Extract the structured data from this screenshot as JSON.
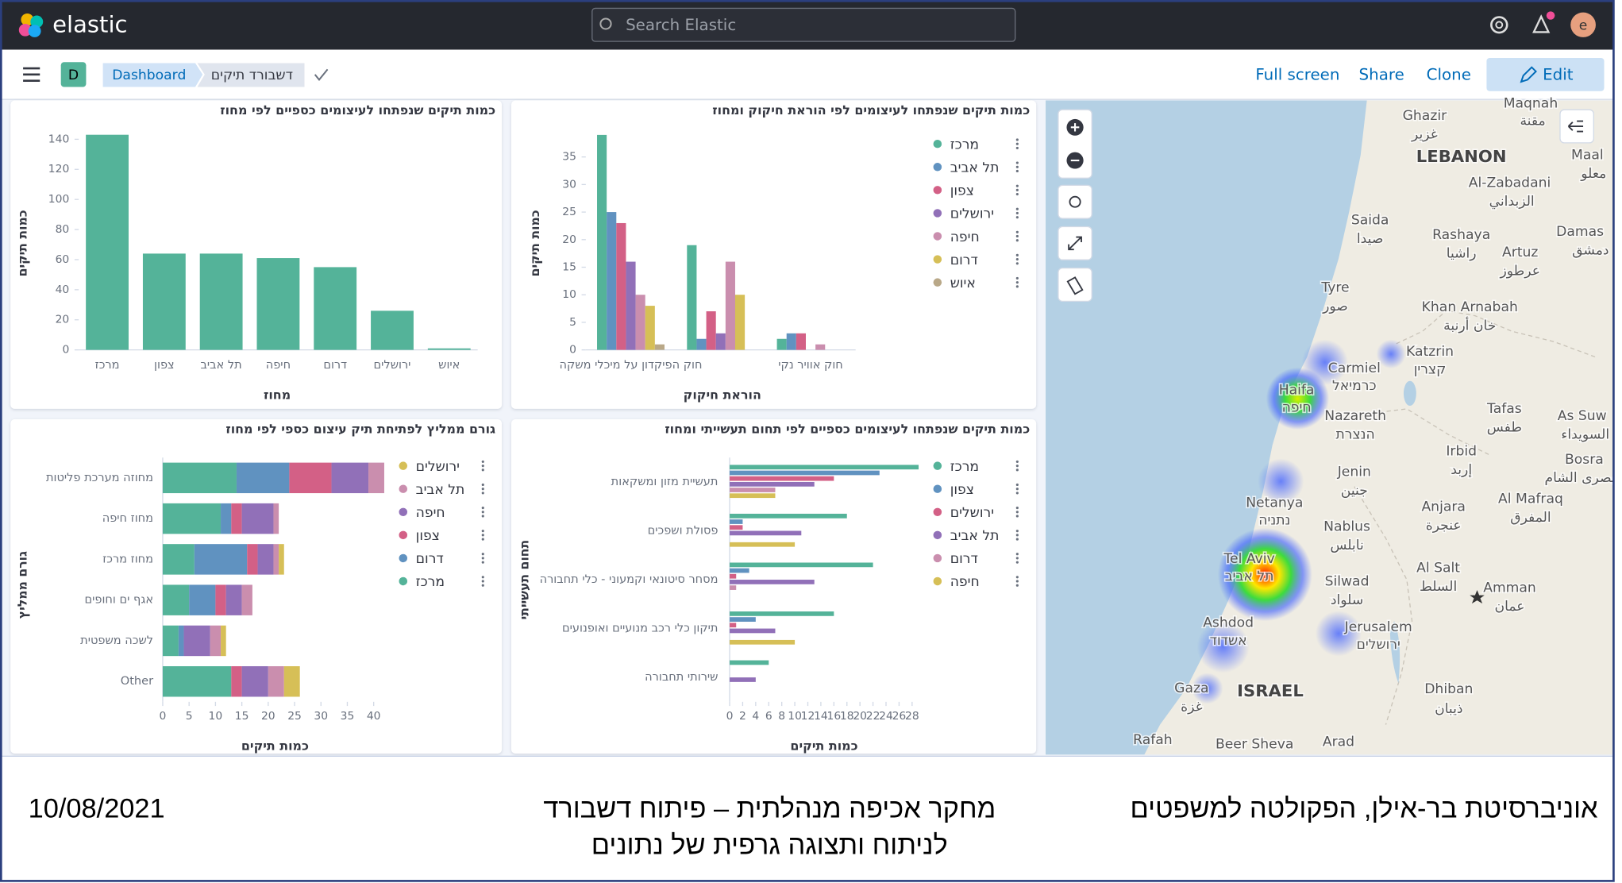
{
  "header": {
    "logo": "elastic",
    "search_placeholder": "Search Elastic",
    "avatar": "e"
  },
  "nav": {
    "space": "D",
    "breadcrumbs": [
      "Dashboard",
      "דשבורד תיקים"
    ],
    "actions": [
      "Full screen",
      "Share",
      "Clone",
      "Edit"
    ]
  },
  "panels": [
    {
      "type": "bar",
      "title": "כמות תיקים שנפתחו לעיצומים כספיים לפי מחוז",
      "categories": [
        "מרכז",
        "צפון",
        "תל אביב",
        "חיפה",
        "דרום",
        "ירושלים",
        "איוש"
      ],
      "values": [
        143,
        64,
        64,
        61,
        55,
        26,
        1
      ],
      "color": "#54b399",
      "ylim": [
        0,
        150
      ],
      "yticks": [
        0,
        20,
        40,
        60,
        80,
        100,
        120,
        140
      ],
      "ylabel": "כמות תיקים",
      "xlabel": "מחוז"
    },
    {
      "type": "grouped_bar",
      "title": "כמות תיקים שנפתחו לעיצומים לפי הוראת חיקוק ומחוז",
      "categories": [
        "חוק הפיקדון על מיכלי משקה",
        null,
        "חוק אוויר נקי"
      ],
      "series": [
        {
          "name": "מרכז",
          "color": "#54b399",
          "values": [
            39,
            19,
            2
          ]
        },
        {
          "name": "תל אביב",
          "color": "#6092c0",
          "values": [
            25,
            2,
            3
          ]
        },
        {
          "name": "צפון",
          "color": "#d36086",
          "values": [
            23,
            7,
            3
          ]
        },
        {
          "name": "ירושלים",
          "color": "#9170b8",
          "values": [
            16,
            3,
            0
          ]
        },
        {
          "name": "חיפה",
          "color": "#ca8eae",
          "values": [
            10,
            16,
            1
          ]
        },
        {
          "name": "דרום",
          "color": "#d6bf57",
          "values": [
            8,
            10,
            0
          ]
        },
        {
          "name": "איוש",
          "color": "#b9a888",
          "values": [
            1,
            0,
            0
          ]
        }
      ],
      "ylim": [
        0,
        40
      ],
      "yticks": [
        0,
        5,
        10,
        15,
        20,
        25,
        30,
        35
      ],
      "ylabel": "כמות תיקים",
      "xlabel": "הוראת חיקוק"
    },
    {
      "type": "stacked_barh",
      "title": "גורם ממליץ לפתיחת תיק עיצום כספי לפי מחוז",
      "categories": [
        "מחוזה מערכת פליטות",
        "מחוז חיפה",
        "מחוז מרכז",
        "אגף ים וחופים",
        "לשכה משפטית",
        "Other"
      ],
      "series": [
        {
          "name": "מרכז",
          "color": "#54b399",
          "values": [
            14,
            11,
            6,
            5,
            3,
            13
          ]
        },
        {
          "name": "דרום",
          "color": "#6092c0",
          "values": [
            10,
            2,
            10,
            5,
            1,
            0
          ]
        },
        {
          "name": "צפון",
          "color": "#d36086",
          "values": [
            8,
            2,
            2,
            2,
            0,
            2
          ]
        },
        {
          "name": "חיפה",
          "color": "#9170b8",
          "values": [
            7,
            6,
            3,
            3,
            5,
            5
          ]
        },
        {
          "name": "תל אביב",
          "color": "#ca8eae",
          "values": [
            3,
            1,
            1,
            2,
            2,
            3
          ]
        },
        {
          "name": "ירושלים",
          "color": "#d6bf57",
          "values": [
            0,
            0,
            1,
            0,
            1,
            3
          ]
        }
      ],
      "xlim": [
        0,
        42
      ],
      "xticks": [
        0,
        5,
        10,
        15,
        20,
        25,
        30,
        35,
        40
      ],
      "ylabel": "גורם ממליץ",
      "xlabel": "כמות תיקים"
    },
    {
      "type": "grouped_barh",
      "title": "כמות תיקים שנפתחו לעיצומים כספיים לפי תחום תעשייתי ומחוז",
      "categories": [
        "תעשיית מזון ומשקאות",
        "פסולת ושפכים",
        "מסחר סיטונאי וקמעוני - כלי תחבורה",
        "תיקון כלי רכב מנועיים ואופנועים",
        "שירותי תחבורה"
      ],
      "series": [
        {
          "name": "מרכז",
          "color": "#54b399",
          "values": [
            29,
            18,
            22,
            16,
            6
          ]
        },
        {
          "name": "צפון",
          "color": "#6092c0",
          "values": [
            23,
            2,
            3,
            4,
            0
          ]
        },
        {
          "name": "ירושלים",
          "color": "#d36086",
          "values": [
            16,
            2,
            1,
            1,
            0
          ]
        },
        {
          "name": "תל אביב",
          "color": "#9170b8",
          "values": [
            13,
            11,
            13,
            7,
            4
          ]
        },
        {
          "name": "דרום",
          "color": "#ca8eae",
          "values": [
            7,
            0,
            1,
            0,
            0
          ]
        },
        {
          "name": "חיפה",
          "color": "#d6bf57",
          "values": [
            7,
            10,
            0,
            10,
            0
          ]
        }
      ],
      "xlim": [
        0,
        29
      ],
      "xticks": [
        0,
        2,
        4,
        6,
        8,
        10,
        12,
        14,
        16,
        18,
        20,
        22,
        24,
        26,
        28
      ],
      "ylabel": "תחום תעשייתי",
      "xlabel": "כמות תיקים"
    }
  ],
  "map": {
    "labels": [
      "Maqnah",
      "مقنة",
      "Ghazir",
      "غزير",
      "LEBANON",
      "Maal",
      "معلو",
      "Al-Zabadani",
      "الزبداني",
      "Saida",
      "صيدا",
      "Damas",
      "دمشق",
      "Rashaya",
      "راشيا",
      "Artuz",
      "عرطوز",
      "Tyre",
      "صور",
      "Khan Arnabah",
      "خان أرنبة",
      "Katzrin",
      "קצרין",
      "Carmiel",
      "כרמיאל",
      "Haifa",
      "חיפה",
      "Nazareth",
      "הנצרת",
      "Tafas",
      "طفس",
      "As Suw",
      "السويداء",
      "Irbid",
      "إربد",
      "Bosra",
      "بصرى الشام",
      "Jenin",
      "جنين",
      "Al Mafraq",
      "المفرق",
      "Netanya",
      "נתניה",
      "Anjara",
      "عنجرة",
      "Nablus",
      "نابلس",
      "Al Salt",
      "السلط",
      "Tel Aviv",
      "תל אביב",
      "Silwad",
      "سلواد",
      "Amman",
      "عمان",
      "Ashdod",
      "אשדוד",
      "Jerusalem",
      "ירושלים",
      "Gaza",
      "غزة",
      "ISRAEL",
      "Dhiban",
      "ذيبان",
      "Rafah",
      "Beer Sheva",
      "Arad"
    ]
  },
  "footer": {
    "institution": "אוניברסיטת בר-אילן, הפקולטה למשפטים",
    "title_lines": [
      "מחקר אכיפה מנהלתית – פיתוח דשבורד",
      "לניתוח ותצוגה גרפית של נתונים"
    ],
    "date": "10/08/2021"
  }
}
